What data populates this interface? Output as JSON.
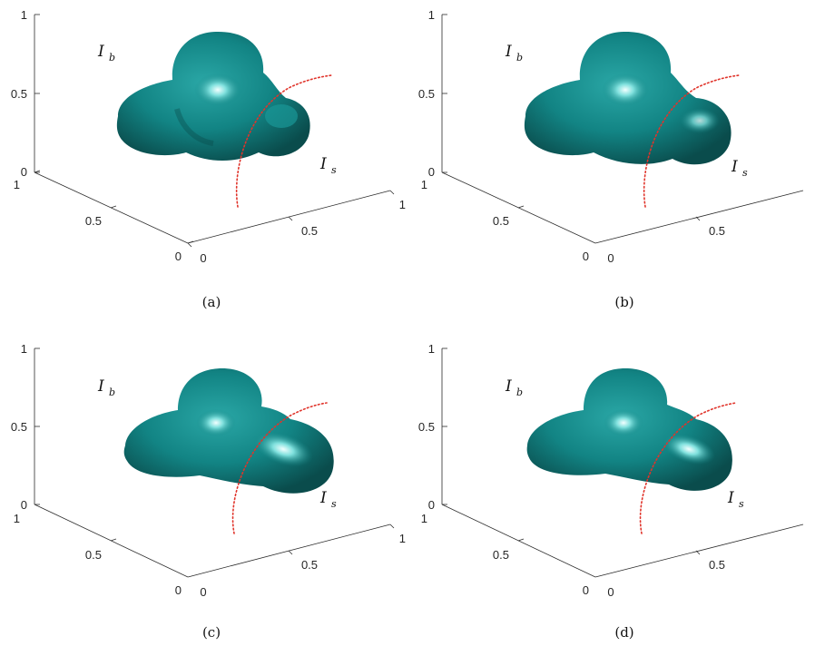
{
  "panels": [
    {
      "caption": "(a)",
      "label_b": {
        "main": "I",
        "sub": "b"
      },
      "label_s": {
        "main": "I",
        "sub": "s"
      },
      "z_ticks": [
        "0",
        "0.5",
        "1"
      ],
      "y_ticks": [
        "0",
        "0.5",
        "1"
      ],
      "x_ticks": [
        "0",
        "0.5",
        "1"
      ]
    },
    {
      "caption": "(b)",
      "label_b": {
        "main": "I",
        "sub": "b"
      },
      "label_s": {
        "main": "I",
        "sub": "s"
      },
      "z_ticks": [
        "0",
        "0.5",
        "1"
      ],
      "y_ticks": [
        "0",
        "0.5",
        "1"
      ],
      "x_ticks": [
        "0",
        "0.5"
      ]
    },
    {
      "caption": "(c)",
      "label_b": {
        "main": "I",
        "sub": "b"
      },
      "label_s": {
        "main": "I",
        "sub": "s"
      },
      "z_ticks": [
        "0",
        "0.5",
        "1"
      ],
      "y_ticks": [
        "0",
        "0.5",
        "1"
      ],
      "x_ticks": [
        "0",
        "0.5",
        "1"
      ]
    },
    {
      "caption": "(d)",
      "label_b": {
        "main": "I",
        "sub": "b"
      },
      "label_s": {
        "main": "I",
        "sub": "s"
      },
      "z_ticks": [
        "0",
        "0.5",
        "1"
      ],
      "y_ticks": [
        "0",
        "0.5",
        "1"
      ],
      "x_ticks": [
        "0",
        "0.5"
      ]
    }
  ],
  "colors": {
    "surface": "#148c8c",
    "surface_dark": "#0a4a4a",
    "highlight": "#f2ffff",
    "curve": "#e0342b"
  }
}
